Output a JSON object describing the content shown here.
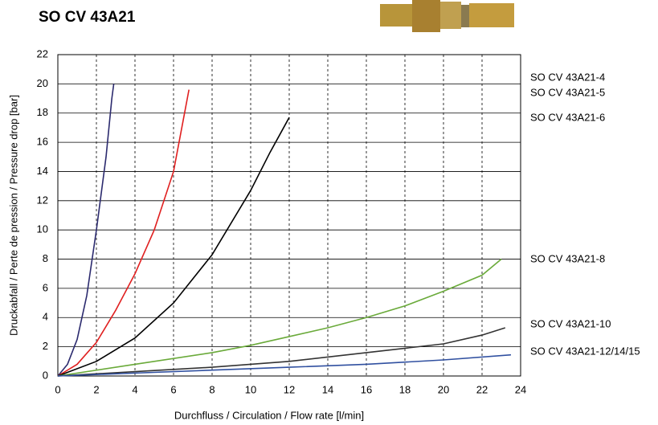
{
  "chart_data": {
    "type": "line",
    "title": "SO CV 43A21",
    "xlabel": "Durchfluss / Circulation / Flow rate [l/min]",
    "ylabel": "Druckabfall / Perte de pression / Pressure drop [bar]",
    "xlim": [
      0,
      24
    ],
    "xticks": [
      0,
      2,
      4,
      6,
      8,
      10,
      12,
      14,
      16,
      18,
      20,
      22,
      24
    ],
    "ylim": [
      0,
      22
    ],
    "yticks": [
      0,
      2,
      4,
      6,
      8,
      10,
      12,
      14,
      16,
      18,
      20,
      22
    ],
    "grid": true,
    "series": [
      {
        "name": "SO CV 43A21-4",
        "color": "#2b2a6e",
        "x": [
          0,
          0.5,
          1,
          1.5,
          2,
          2.5,
          2.8,
          2.9
        ],
        "values": [
          0,
          0.8,
          2.5,
          5.5,
          10,
          15,
          19,
          20
        ]
      },
      {
        "name": "SO CV 43A21-5",
        "color": "#e02020",
        "x": [
          0,
          1,
          2,
          3,
          4,
          5,
          6,
          6.5,
          6.8
        ],
        "values": [
          0,
          0.8,
          2.3,
          4.5,
          7,
          10,
          14,
          17.5,
          19.6
        ]
      },
      {
        "name": "SO CV 43A21-6",
        "color": "#000000",
        "x": [
          0,
          2,
          4,
          6,
          8,
          10,
          11,
          12
        ],
        "values": [
          0,
          1,
          2.6,
          5,
          8.3,
          12.7,
          15.3,
          17.7
        ]
      },
      {
        "name": "SO CV 43A21-8",
        "color": "#6aaa3a",
        "x": [
          0,
          4,
          8,
          10,
          12,
          14,
          16,
          18,
          20,
          22,
          23
        ],
        "values": [
          0,
          0.8,
          1.6,
          2.1,
          2.7,
          3.3,
          4,
          4.8,
          5.8,
          6.9,
          8
        ]
      },
      {
        "name": "SO CV 43A21-10",
        "color": "#333333",
        "x": [
          0,
          4,
          8,
          12,
          16,
          20,
          22,
          23.2
        ],
        "values": [
          0,
          0.3,
          0.6,
          1,
          1.6,
          2.2,
          2.8,
          3.3
        ]
      },
      {
        "name": "SO CV 43A21-12/14/15",
        "color": "#3050a0",
        "x": [
          0,
          4,
          8,
          12,
          16,
          20,
          23.5
        ],
        "values": [
          0,
          0.2,
          0.4,
          0.6,
          0.8,
          1.1,
          1.45
        ]
      }
    ]
  }
}
